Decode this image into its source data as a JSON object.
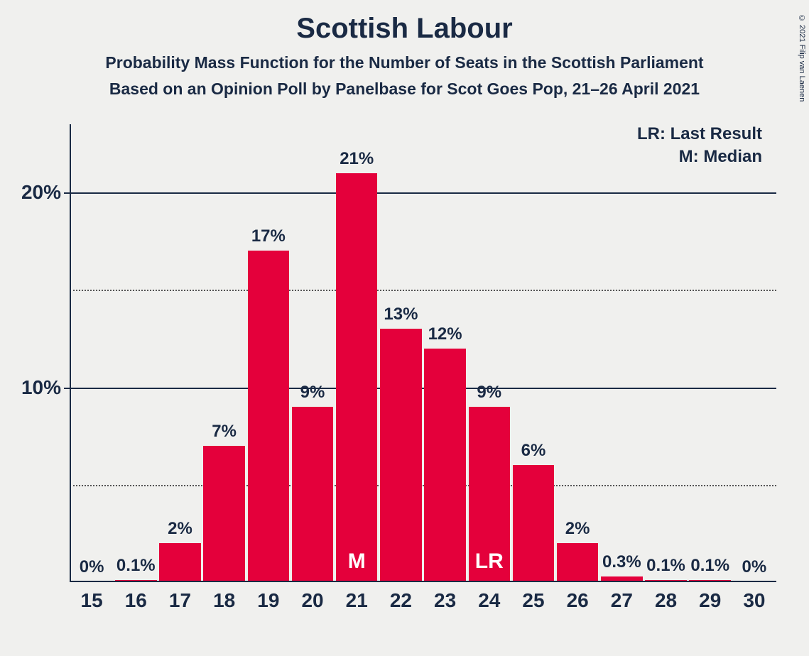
{
  "copyright": "© 2021 Filip van Laenen",
  "title": "Scottish Labour",
  "subtitle1": "Probability Mass Function for the Number of Seats in the Scottish Parliament",
  "subtitle2": "Based on an Opinion Poll by Panelbase for Scot Goes Pop, 21–26 April 2021",
  "legend": {
    "lr": "LR: Last Result",
    "m": "M: Median"
  },
  "chart": {
    "type": "bar",
    "bar_color": "#e4003b",
    "background_color": "#f0f0ee",
    "text_color": "#1a2a44",
    "annot_color": "#ffffff",
    "y_max": 23.5,
    "y_ticks": [
      {
        "value": 10,
        "label": "10%",
        "style": "solid"
      },
      {
        "value": 20,
        "label": "20%",
        "style": "solid"
      },
      {
        "value": 5,
        "label": "",
        "style": "dotted"
      },
      {
        "value": 15,
        "label": "",
        "style": "dotted"
      }
    ],
    "bars": [
      {
        "x": "15",
        "value": 0.05,
        "label": "0%"
      },
      {
        "x": "16",
        "value": 0.1,
        "label": "0.1%"
      },
      {
        "x": "17",
        "value": 2,
        "label": "2%"
      },
      {
        "x": "18",
        "value": 7,
        "label": "7%"
      },
      {
        "x": "19",
        "value": 17,
        "label": "17%"
      },
      {
        "x": "20",
        "value": 9,
        "label": "9%"
      },
      {
        "x": "21",
        "value": 21,
        "label": "21%",
        "annot": "M"
      },
      {
        "x": "22",
        "value": 13,
        "label": "13%"
      },
      {
        "x": "23",
        "value": 12,
        "label": "12%"
      },
      {
        "x": "24",
        "value": 9,
        "label": "9%",
        "annot": "LR"
      },
      {
        "x": "25",
        "value": 6,
        "label": "6%"
      },
      {
        "x": "26",
        "value": 2,
        "label": "2%"
      },
      {
        "x": "27",
        "value": 0.3,
        "label": "0.3%"
      },
      {
        "x": "28",
        "value": 0.1,
        "label": "0.1%"
      },
      {
        "x": "29",
        "value": 0.1,
        "label": "0.1%"
      },
      {
        "x": "30",
        "value": 0.03,
        "label": "0%"
      }
    ]
  }
}
